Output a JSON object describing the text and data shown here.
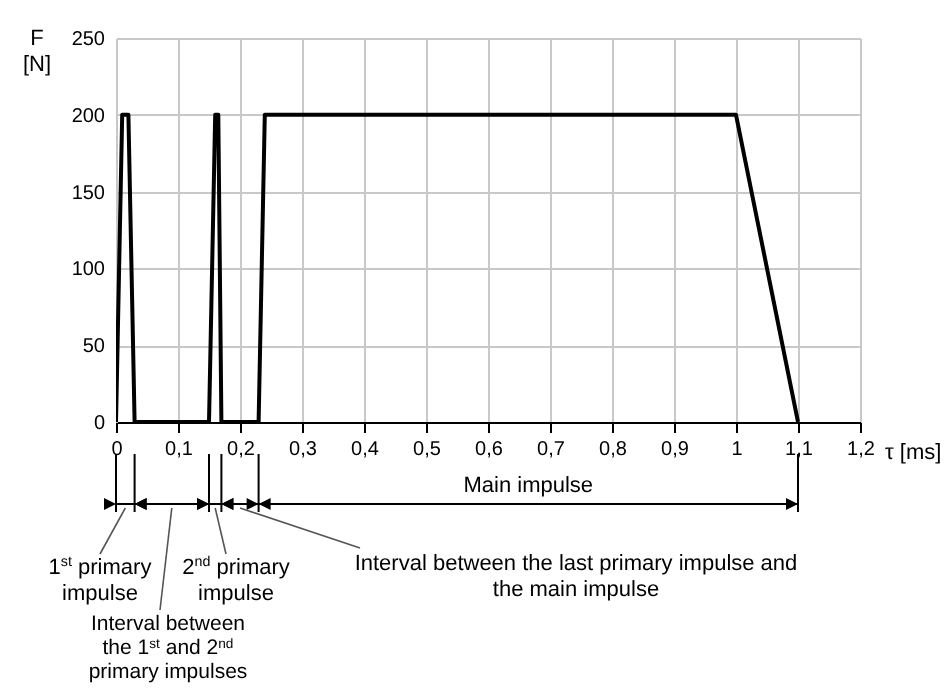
{
  "chart_data": {
    "type": "line",
    "xlabel": "τ [ms]",
    "ylabel": "F [N]",
    "x": [
      0,
      0.01,
      0.02,
      0.03,
      0.15,
      0.16,
      0.165,
      0.17,
      0.23,
      0.24,
      1,
      1.1
    ],
    "series": [
      {
        "color": "#000000",
        "values": [
          0,
          200,
          200,
          0,
          0,
          200,
          200,
          0,
          0,
          200,
          200,
          0
        ]
      }
    ],
    "xlim": [
      0,
      1.2
    ],
    "ylim": [
      0,
      250
    ],
    "xticks": [
      {
        "value": 0,
        "label": "0"
      },
      {
        "value": 0.1,
        "label": "0,1"
      },
      {
        "value": 0.2,
        "label": "0,2"
      },
      {
        "value": 0.3,
        "label": "0,3"
      },
      {
        "value": 0.4,
        "label": "0,4"
      },
      {
        "value": 0.5,
        "label": "0,5"
      },
      {
        "value": 0.6,
        "label": "0,6"
      },
      {
        "value": 0.7,
        "label": "0,7"
      },
      {
        "value": 0.8,
        "label": "0,8"
      },
      {
        "value": 0.9,
        "label": "0,9"
      },
      {
        "value": 1,
        "label": "1"
      },
      {
        "value": 1.1,
        "label": "1,1"
      },
      {
        "value": 1.2,
        "label": "1,2"
      }
    ],
    "yticks": [
      0,
      50,
      100,
      150,
      200,
      250
    ],
    "grid": true,
    "annotations": [
      "Main impulse",
      "1$^{st}$ primary impulse",
      "2$^{nd}$ primary impulse",
      "Interval between the last primary impulse and the main impulse",
      "Interval between the 1$^{st}$ and 2$^{nd}$ primary impulses"
    ]
  }
}
